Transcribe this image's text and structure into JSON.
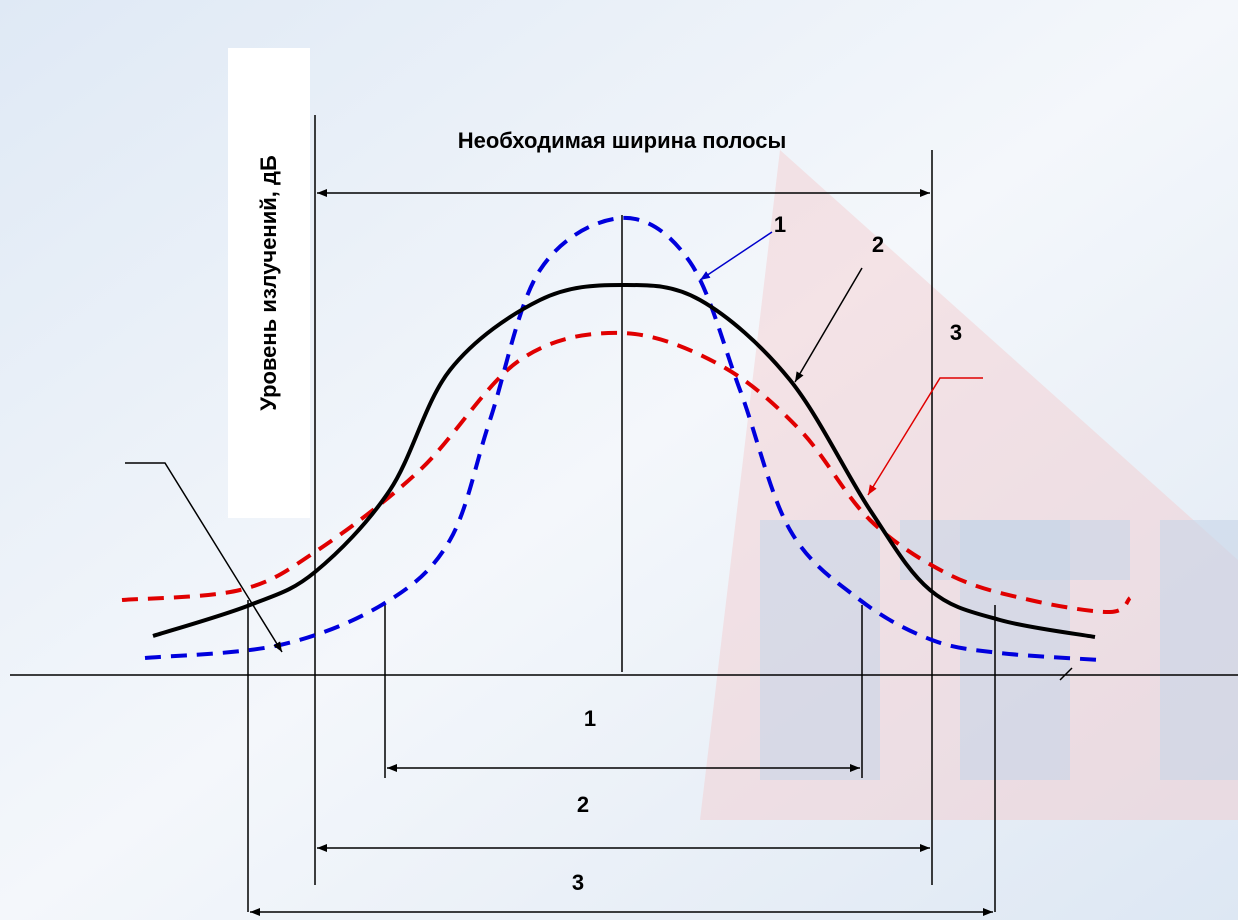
{
  "title": "Необходимая ширина полосы",
  "y_axis_label": "Уровень излучений, дБ",
  "curve_labels": [
    "1",
    "2",
    "3"
  ],
  "bandwidth_labels": [
    "1",
    "2",
    "3"
  ]
}
